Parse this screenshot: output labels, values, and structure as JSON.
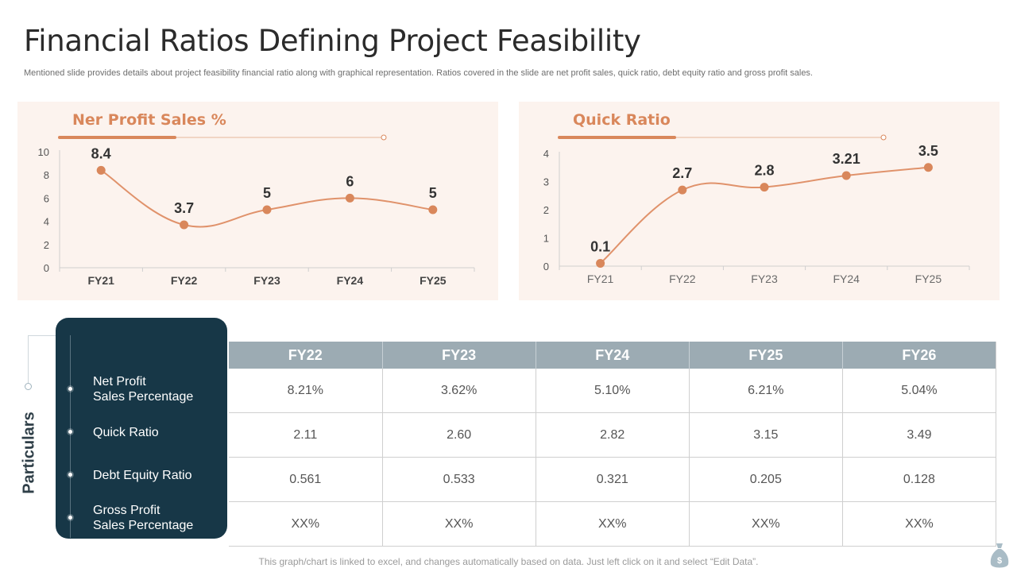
{
  "page": {
    "title": "Financial Ratios Defining Project Feasibility",
    "subtitle": "Mentioned slide provides details about project feasibility financial ratio along with graphical representation. Ratios covered in the slide are net profit sales, quick ratio, debt equity ratio and gross profit sales.",
    "footnote": "This graph/chart is linked to excel, and changes automatically based on data.  Just left click on it and select “Edit Data”."
  },
  "colors": {
    "accent": "#d9875b",
    "panel_bg": "#fcf3ee",
    "dark": "#173747",
    "header": "#9cabb3"
  },
  "chart_data": [
    {
      "type": "line",
      "title": "Ner Profit Sales %",
      "categories": [
        "FY21",
        "FY22",
        "FY23",
        "FY24",
        "FY25"
      ],
      "values": [
        8.4,
        3.7,
        5,
        6,
        5
      ],
      "labels": [
        "8.4",
        "3.7",
        "5",
        "6",
        "5"
      ],
      "yticks": [
        "0",
        "2",
        "4",
        "6",
        "8",
        "10"
      ],
      "ylim": [
        0,
        10
      ],
      "xlabel": "",
      "ylabel": ""
    },
    {
      "type": "line",
      "title": "Quick Ratio",
      "categories": [
        "FY21",
        "FY22",
        "FY23",
        "FY24",
        "FY25"
      ],
      "values": [
        0.1,
        2.7,
        2.8,
        3.21,
        3.5
      ],
      "labels": [
        "0.1",
        "2.7",
        "2.8",
        "3.21",
        "3.5"
      ],
      "yticks": [
        "0",
        "1",
        "2",
        "3",
        "4"
      ],
      "ylim": [
        0,
        4
      ],
      "xlabel": "",
      "ylabel": ""
    }
  ],
  "table": {
    "side_title": "Particulars",
    "headers": [
      "FY22",
      "FY23",
      "FY24",
      "FY25",
      "FY26"
    ],
    "rows": [
      {
        "label": "Net Profit\nSales Percentage",
        "cells": [
          "8.21%",
          "3.62%",
          "5.10%",
          "6.21%",
          "5.04%"
        ]
      },
      {
        "label": "Quick Ratio",
        "cells": [
          "2.11",
          "2.60",
          "2.82",
          "3.15",
          "3.49"
        ]
      },
      {
        "label": "Debt Equity Ratio",
        "cells": [
          "0.561",
          "0.533",
          "0.321",
          "0.205",
          "0.128"
        ]
      },
      {
        "label": "Gross Profit\nSales Percentage",
        "cells": [
          "XX%",
          "XX%",
          "XX%",
          "XX%",
          "XX%"
        ]
      }
    ]
  }
}
